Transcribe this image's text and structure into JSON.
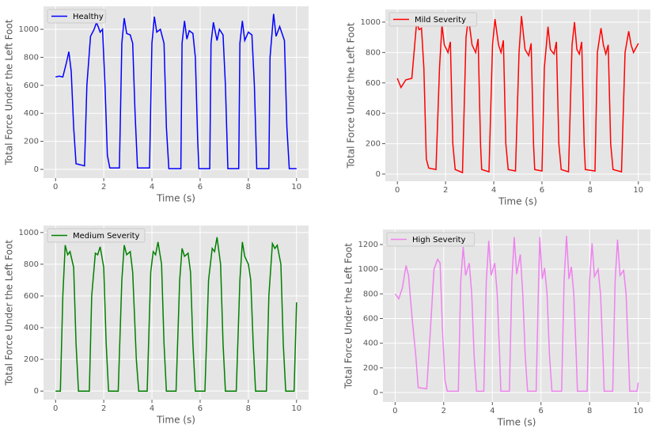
{
  "chart_data": [
    {
      "type": "line",
      "xlabel": "Time (s)",
      "ylabel": "Total Force Under the Left Foot",
      "xlim": [
        -0.5,
        10.5
      ],
      "ylim": [
        -62,
        1164
      ],
      "xticks": [
        0,
        2,
        4,
        6,
        8,
        10
      ],
      "yticks": [
        0,
        200,
        400,
        600,
        800,
        1000
      ],
      "grid": true,
      "legend": "upper left",
      "series": [
        {
          "name": "Healthy",
          "color": "#0000ff",
          "x": [
            0,
            0.15,
            0.3,
            0.45,
            0.55,
            0.65,
            0.75,
            0.85,
            1.2,
            1.3,
            1.45,
            1.6,
            1.7,
            1.85,
            1.95,
            2.05,
            2.15,
            2.25,
            2.65,
            2.75,
            2.85,
            2.95,
            3.1,
            3.2,
            3.3,
            3.4,
            3.9,
            4.0,
            4.1,
            4.2,
            4.35,
            4.5,
            4.6,
            4.7,
            5.2,
            5.25,
            5.35,
            5.45,
            5.55,
            5.7,
            5.8,
            5.9,
            5.95,
            6.4,
            6.45,
            6.55,
            6.7,
            6.8,
            6.95,
            7.05,
            7.15,
            7.6,
            7.65,
            7.75,
            7.85,
            8.0,
            8.15,
            8.25,
            8.35,
            8.85,
            8.9,
            9.05,
            9.15,
            9.3,
            9.5,
            9.6,
            9.7,
            10
          ],
          "values": [
            660,
            665,
            660,
            760,
            840,
            700,
            300,
            40,
            25,
            600,
            950,
            1000,
            1050,
            980,
            1000,
            600,
            100,
            10,
            10,
            900,
            1080,
            970,
            960,
            900,
            400,
            10,
            10,
            900,
            1090,
            980,
            1000,
            900,
            300,
            5,
            5,
            900,
            1060,
            930,
            990,
            970,
            800,
            200,
            5,
            5,
            900,
            1050,
            920,
            1000,
            960,
            600,
            5,
            5,
            900,
            1060,
            920,
            980,
            960,
            600,
            5,
            5,
            800,
            1110,
            950,
            1020,
            920,
            300,
            5,
            5
          ]
        }
      ]
    },
    {
      "type": "line",
      "xlabel": "Time (s)",
      "ylabel": "Total Force Under the Left Foot",
      "xlim": [
        -0.5,
        10.5
      ],
      "ylim": [
        -47,
        1083
      ],
      "xticks": [
        0,
        2,
        4,
        6,
        8,
        10
      ],
      "yticks": [
        0,
        200,
        400,
        600,
        800,
        1000
      ],
      "grid": true,
      "legend": "upper left",
      "series": [
        {
          "name": "Mild Severity",
          "color": "#ff0000",
          "x": [
            0,
            0.15,
            0.35,
            0.6,
            0.8,
            0.9,
            1.0,
            1.1,
            1.2,
            1.3,
            1.6,
            1.75,
            1.85,
            1.95,
            2.1,
            2.2,
            2.3,
            2.4,
            2.7,
            2.85,
            2.95,
            3.1,
            3.25,
            3.35,
            3.45,
            3.5,
            3.8,
            3.95,
            4.05,
            4.2,
            4.3,
            4.4,
            4.5,
            4.6,
            4.9,
            5.05,
            5.15,
            5.3,
            5.45,
            5.55,
            5.65,
            5.7,
            6.0,
            6.1,
            6.25,
            6.35,
            6.5,
            6.6,
            6.7,
            6.8,
            7.1,
            7.25,
            7.35,
            7.45,
            7.55,
            7.65,
            7.75,
            7.8,
            8.2,
            8.3,
            8.45,
            8.55,
            8.65,
            8.75,
            8.85,
            8.95,
            9.3,
            9.45,
            9.6,
            9.7,
            9.8,
            9.9,
            10
          ],
          "values": [
            630,
            570,
            620,
            630,
            1000,
            950,
            960,
            700,
            100,
            40,
            30,
            700,
            980,
            850,
            800,
            870,
            200,
            30,
            10,
            900,
            1030,
            850,
            800,
            890,
            200,
            30,
            15,
            850,
            1020,
            850,
            800,
            880,
            200,
            30,
            20,
            800,
            1040,
            820,
            780,
            860,
            200,
            30,
            20,
            700,
            970,
            820,
            790,
            870,
            200,
            30,
            15,
            850,
            1000,
            820,
            790,
            870,
            200,
            30,
            20,
            800,
            960,
            850,
            790,
            850,
            200,
            30,
            15,
            800,
            940,
            850,
            800,
            830,
            860
          ]
        }
      ]
    },
    {
      "type": "line",
      "xlabel": "Time (s)",
      "ylabel": "Total Force Under the Left Foot",
      "xlim": [
        -0.5,
        10.5
      ],
      "ylim": [
        -54,
        1044
      ],
      "xticks": [
        0,
        2,
        4,
        6,
        8,
        10
      ],
      "yticks": [
        0,
        200,
        400,
        600,
        800,
        1000
      ],
      "grid": true,
      "legend": "upper left",
      "series": [
        {
          "name": "Medium Severity",
          "color": "#008000",
          "x": [
            0,
            0.2,
            0.3,
            0.4,
            0.5,
            0.6,
            0.75,
            0.85,
            0.95,
            1.4,
            1.5,
            1.65,
            1.75,
            1.85,
            2.0,
            2.1,
            2.2,
            2.6,
            2.75,
            2.85,
            2.95,
            3.1,
            3.2,
            3.35,
            3.45,
            3.8,
            3.95,
            4.05,
            4.15,
            4.25,
            4.4,
            4.5,
            4.6,
            5.0,
            5.15,
            5.25,
            5.35,
            5.5,
            5.6,
            5.7,
            5.8,
            6.2,
            6.35,
            6.5,
            6.6,
            6.7,
            6.85,
            6.95,
            7.05,
            7.5,
            7.65,
            7.75,
            7.85,
            8.0,
            8.1,
            8.2,
            8.3,
            8.75,
            8.85,
            9.0,
            9.1,
            9.2,
            9.35,
            9.45,
            9.55,
            9.9,
            10
          ],
          "values": [
            0,
            0,
            600,
            920,
            860,
            880,
            780,
            300,
            0,
            0,
            600,
            870,
            860,
            910,
            780,
            300,
            0,
            0,
            700,
            920,
            860,
            880,
            750,
            200,
            0,
            0,
            750,
            880,
            860,
            940,
            800,
            300,
            0,
            0,
            700,
            900,
            850,
            870,
            750,
            300,
            0,
            0,
            700,
            900,
            880,
            970,
            800,
            300,
            0,
            0,
            700,
            940,
            850,
            800,
            700,
            300,
            0,
            0,
            600,
            930,
            900,
            920,
            800,
            300,
            0,
            0,
            560
          ]
        }
      ]
    },
    {
      "type": "line",
      "xlabel": "Time (s)",
      "ylabel": "Total Force Under the Left Foot",
      "xlim": [
        -0.5,
        10.5
      ],
      "ylim": [
        -77,
        1322
      ],
      "xticks": [
        0,
        2,
        4,
        6,
        8,
        10
      ],
      "yticks": [
        0,
        200,
        400,
        600,
        800,
        1000,
        1200
      ],
      "grid": true,
      "legend": "upper left",
      "series": [
        {
          "name": "High Severity",
          "color": "#ee82ee",
          "x": [
            0,
            0.15,
            0.3,
            0.45,
            0.55,
            0.7,
            0.85,
            0.95,
            1.3,
            1.45,
            1.6,
            1.75,
            1.85,
            1.95,
            2.05,
            2.15,
            2.6,
            2.7,
            2.8,
            2.9,
            3.05,
            3.15,
            3.25,
            3.35,
            3.65,
            3.75,
            3.85,
            3.95,
            4.1,
            4.2,
            4.3,
            4.35,
            4.7,
            4.8,
            4.9,
            5.0,
            5.15,
            5.25,
            5.35,
            5.45,
            5.8,
            5.9,
            5.95,
            6.05,
            6.15,
            6.25,
            6.35,
            6.45,
            6.85,
            6.95,
            7.05,
            7.15,
            7.25,
            7.35,
            7.45,
            7.5,
            7.9,
            8.0,
            8.1,
            8.2,
            8.35,
            8.45,
            8.55,
            8.6,
            8.95,
            9.05,
            9.15,
            9.25,
            9.4,
            9.5,
            9.6,
            9.65,
            9.95,
            10
          ],
          "values": [
            800,
            760,
            850,
            1030,
            950,
            600,
            300,
            40,
            30,
            500,
            1000,
            1080,
            1050,
            500,
            100,
            10,
            10,
            900,
            1180,
            950,
            1050,
            800,
            300,
            10,
            10,
            900,
            1230,
            950,
            1050,
            800,
            300,
            10,
            10,
            900,
            1260,
            960,
            1120,
            800,
            300,
            10,
            10,
            900,
            1260,
            920,
            1010,
            800,
            300,
            10,
            10,
            900,
            1270,
            920,
            1020,
            800,
            300,
            10,
            10,
            900,
            1210,
            940,
            1000,
            800,
            300,
            10,
            10,
            900,
            1240,
            950,
            990,
            800,
            300,
            10,
            10,
            80
          ]
        }
      ]
    }
  ]
}
